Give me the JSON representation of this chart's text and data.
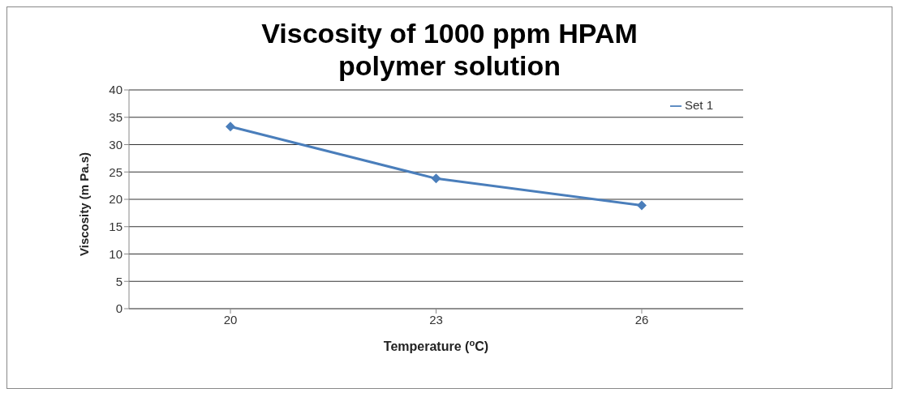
{
  "chart_data": {
    "type": "line",
    "title": "Viscosity of 1000 ppm HPAM polymer solution",
    "xlabel": "Temperature ($^{o}$C)",
    "ylabel": "Viscosity (m Pa.s)",
    "categories": [
      "20",
      "23",
      "26"
    ],
    "series": [
      {
        "name": "Set 1",
        "color": "#4a7ebb",
        "values": [
          33.3,
          23.8,
          18.9
        ]
      }
    ],
    "ylim": [
      0,
      40
    ],
    "yticks": [
      0,
      5,
      10,
      15,
      20,
      25,
      30,
      35,
      40
    ],
    "grid": "y",
    "legend": "top right",
    "marker": "diamond",
    "line_style": "solid"
  }
}
